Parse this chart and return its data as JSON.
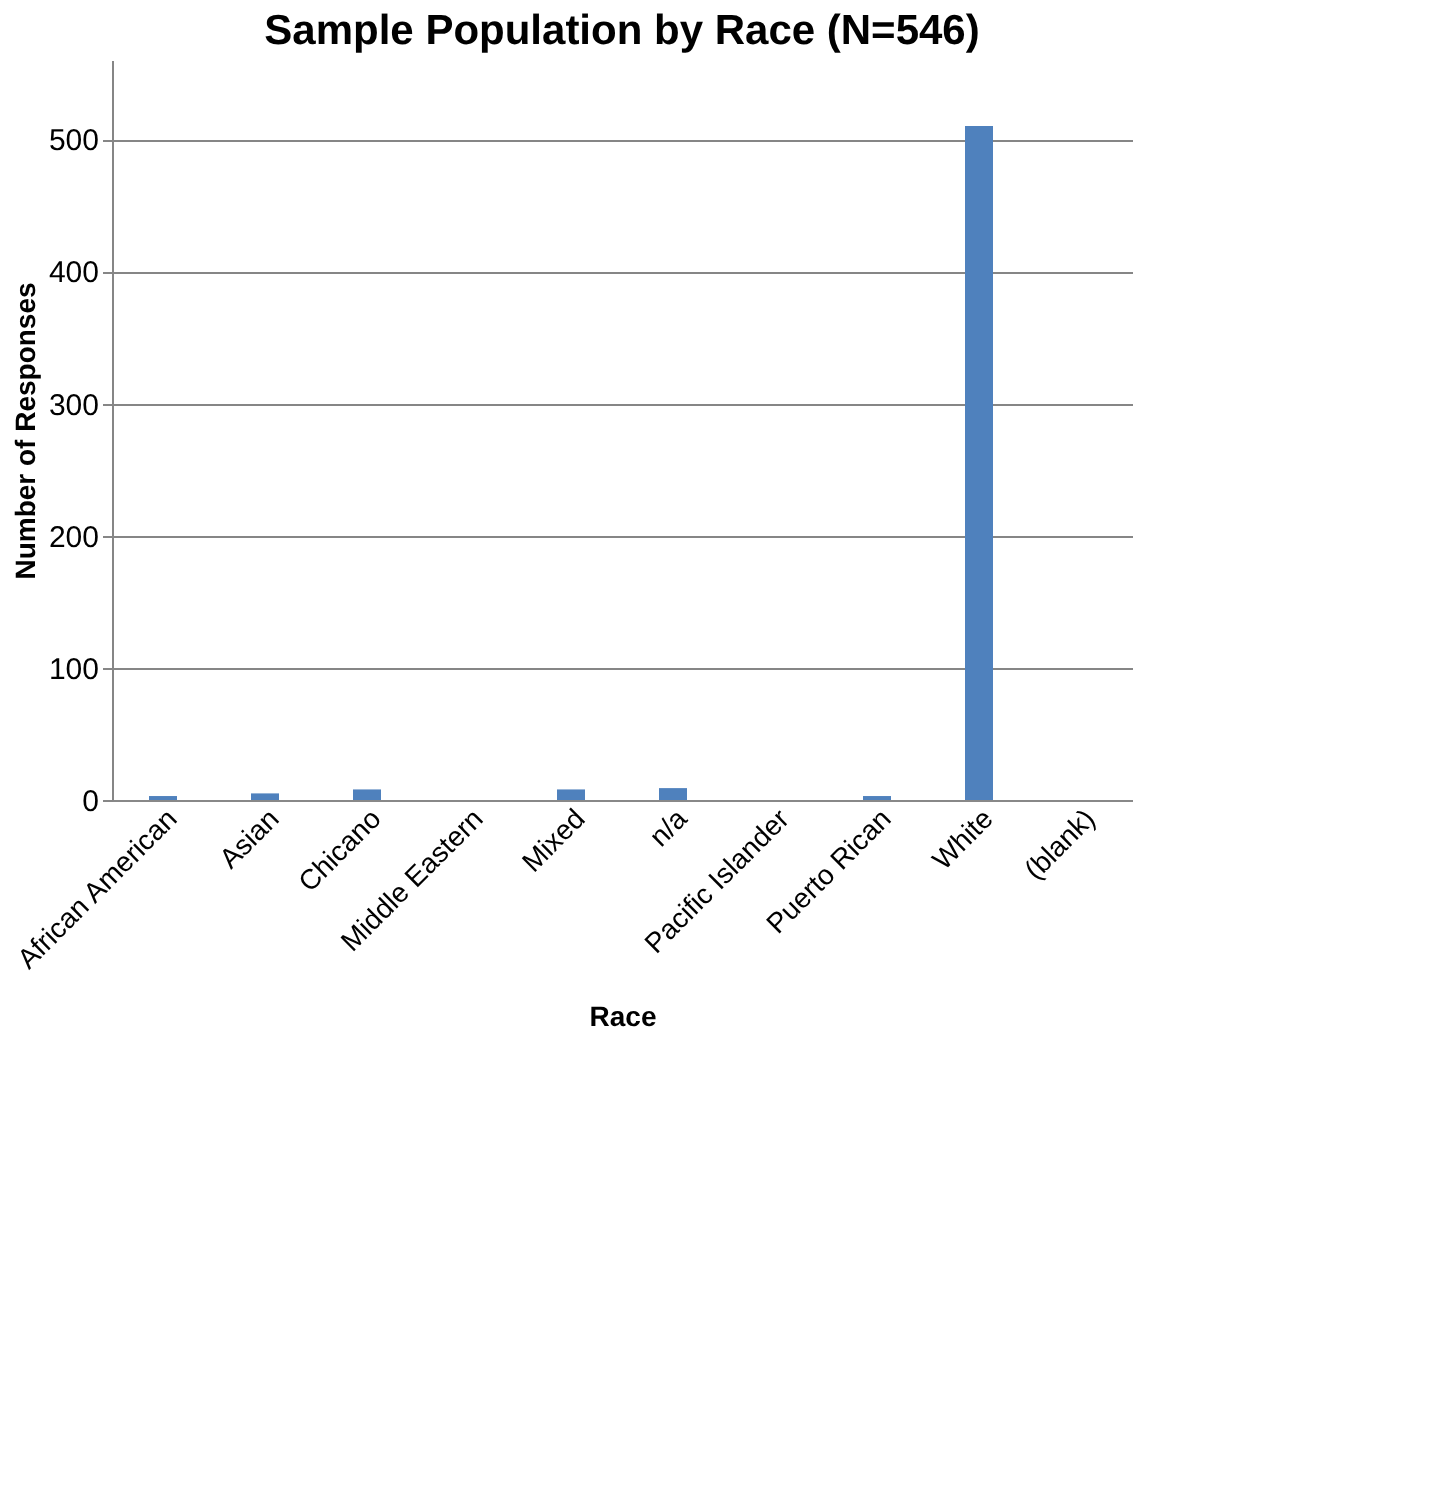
{
  "chart_data": {
    "type": "bar",
    "title": "Sample Population by Race (N=546)",
    "xlabel": "Race",
    "ylabel": "Number of Responses",
    "categories": [
      "African American",
      "Asian",
      "Chicano",
      "Middle Eastern",
      "Mixed",
      "n/a",
      "Pacific Islander",
      "Puerto Rican",
      "White",
      "(blank)"
    ],
    "values": [
      3,
      5,
      8,
      0,
      8,
      9,
      0,
      3,
      510,
      0
    ],
    "color": "#4f81bd",
    "ylim": [
      0,
      560
    ],
    "yticks": [
      0,
      100,
      200,
      300,
      400,
      500
    ],
    "grid": "y"
  }
}
